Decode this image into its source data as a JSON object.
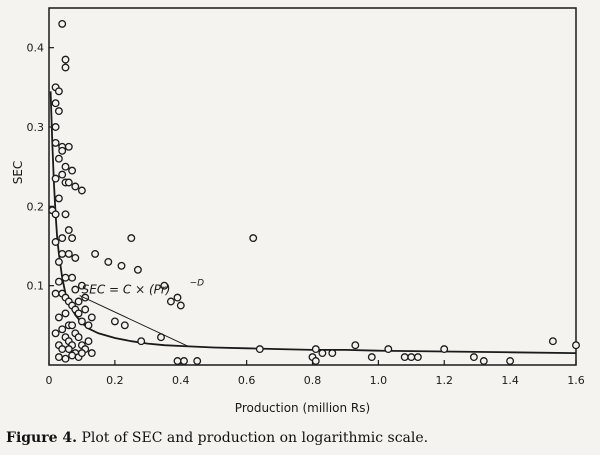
{
  "caption": {
    "label": "Figure 4.",
    "text": "Plot of SEC and production on logarithmic scale."
  },
  "chart_data": {
    "type": "scatter",
    "xlabel": "Production (million Rs)",
    "ylabel": "SEC",
    "xlim": [
      0,
      1.6
    ],
    "ylim": [
      0,
      0.45
    ],
    "x_ticks": [
      "0",
      "0.2",
      "0.4",
      "0.6",
      "0.8",
      "1.0",
      "1.2",
      "1.4",
      "1.6"
    ],
    "y_ticks": [
      "0.1",
      "0.2",
      "0.3",
      "0.4"
    ],
    "y_tick_values": [
      0.1,
      0.2,
      0.3,
      0.4
    ],
    "x_tick_values": [
      0,
      0.2,
      0.4,
      0.6,
      0.8,
      1.0,
      1.2,
      1.4,
      1.6
    ],
    "grid": false,
    "annotation": {
      "text": "SEC = C × (Pr)",
      "superscript": "−D",
      "at_x": 0.6,
      "at_y": 0.09,
      "points_to": [
        0.5,
        0.03
      ]
    },
    "fit_curve": {
      "x": [
        0.005,
        0.01,
        0.015,
        0.02,
        0.025,
        0.03,
        0.04,
        0.05,
        0.06,
        0.08,
        0.1,
        0.12,
        0.15,
        0.2,
        0.25,
        0.3,
        0.35,
        0.4,
        0.5,
        0.6,
        0.7,
        0.8,
        0.9,
        1.0,
        1.2,
        1.4,
        1.6
      ],
      "y": [
        0.345,
        0.28,
        0.23,
        0.19,
        0.16,
        0.14,
        0.11,
        0.09,
        0.078,
        0.063,
        0.053,
        0.046,
        0.04,
        0.034,
        0.03,
        0.027,
        0.025,
        0.024,
        0.022,
        0.021,
        0.02,
        0.019,
        0.019,
        0.018,
        0.017,
        0.016,
        0.015
      ]
    },
    "points": {
      "x": [
        0.04,
        0.05,
        0.05,
        0.02,
        0.03,
        0.02,
        0.03,
        0.02,
        0.04,
        0.02,
        0.04,
        0.06,
        0.03,
        0.05,
        0.04,
        0.07,
        0.02,
        0.05,
        0.06,
        0.08,
        0.03,
        0.1,
        0.01,
        0.02,
        0.05,
        0.06,
        0.04,
        0.07,
        0.02,
        0.04,
        0.03,
        0.06,
        0.08,
        0.05,
        0.03,
        0.07,
        0.08,
        0.1,
        0.02,
        0.04,
        0.05,
        0.06,
        0.09,
        0.07,
        0.11,
        0.08,
        0.05,
        0.03,
        0.09,
        0.11,
        0.13,
        0.06,
        0.04,
        0.07,
        0.1,
        0.12,
        0.02,
        0.05,
        0.08,
        0.03,
        0.06,
        0.09,
        0.12,
        0.1,
        0.07,
        0.06,
        0.04,
        0.08,
        0.11,
        0.13,
        0.09,
        0.03,
        0.05,
        0.07,
        0.1,
        0.14,
        0.22,
        0.25,
        0.18,
        0.27,
        0.2,
        0.28,
        0.23,
        0.35,
        0.37,
        0.34,
        0.39,
        0.4,
        0.41,
        0.45,
        0.39,
        0.62,
        0.64,
        0.81,
        0.83,
        0.86,
        0.8,
        0.81,
        0.93,
        0.98,
        1.03,
        1.08,
        1.1,
        1.12,
        1.2,
        1.29,
        1.32,
        1.4,
        1.53,
        1.6
      ],
      "y": [
        0.43,
        0.385,
        0.375,
        0.35,
        0.345,
        0.33,
        0.32,
        0.3,
        0.275,
        0.28,
        0.27,
        0.275,
        0.26,
        0.25,
        0.24,
        0.245,
        0.235,
        0.23,
        0.23,
        0.225,
        0.21,
        0.22,
        0.195,
        0.19,
        0.19,
        0.17,
        0.16,
        0.16,
        0.155,
        0.14,
        0.13,
        0.14,
        0.135,
        0.11,
        0.105,
        0.11,
        0.095,
        0.1,
        0.09,
        0.09,
        0.085,
        0.08,
        0.08,
        0.075,
        0.085,
        0.07,
        0.065,
        0.06,
        0.065,
        0.07,
        0.06,
        0.05,
        0.045,
        0.05,
        0.055,
        0.05,
        0.04,
        0.035,
        0.04,
        0.025,
        0.03,
        0.035,
        0.03,
        0.025,
        0.025,
        0.02,
        0.02,
        0.015,
        0.02,
        0.015,
        0.01,
        0.01,
        0.008,
        0.012,
        0.015,
        0.14,
        0.125,
        0.16,
        0.13,
        0.12,
        0.055,
        0.03,
        0.05,
        0.1,
        0.08,
        0.035,
        0.085,
        0.075,
        0.005,
        0.005,
        0.005,
        0.16,
        0.02,
        0.02,
        0.015,
        0.015,
        0.01,
        0.005,
        0.025,
        0.01,
        0.02,
        0.01,
        0.01,
        0.01,
        0.02,
        0.01,
        0.005,
        0.005,
        0.03,
        0.025
      ]
    }
  }
}
